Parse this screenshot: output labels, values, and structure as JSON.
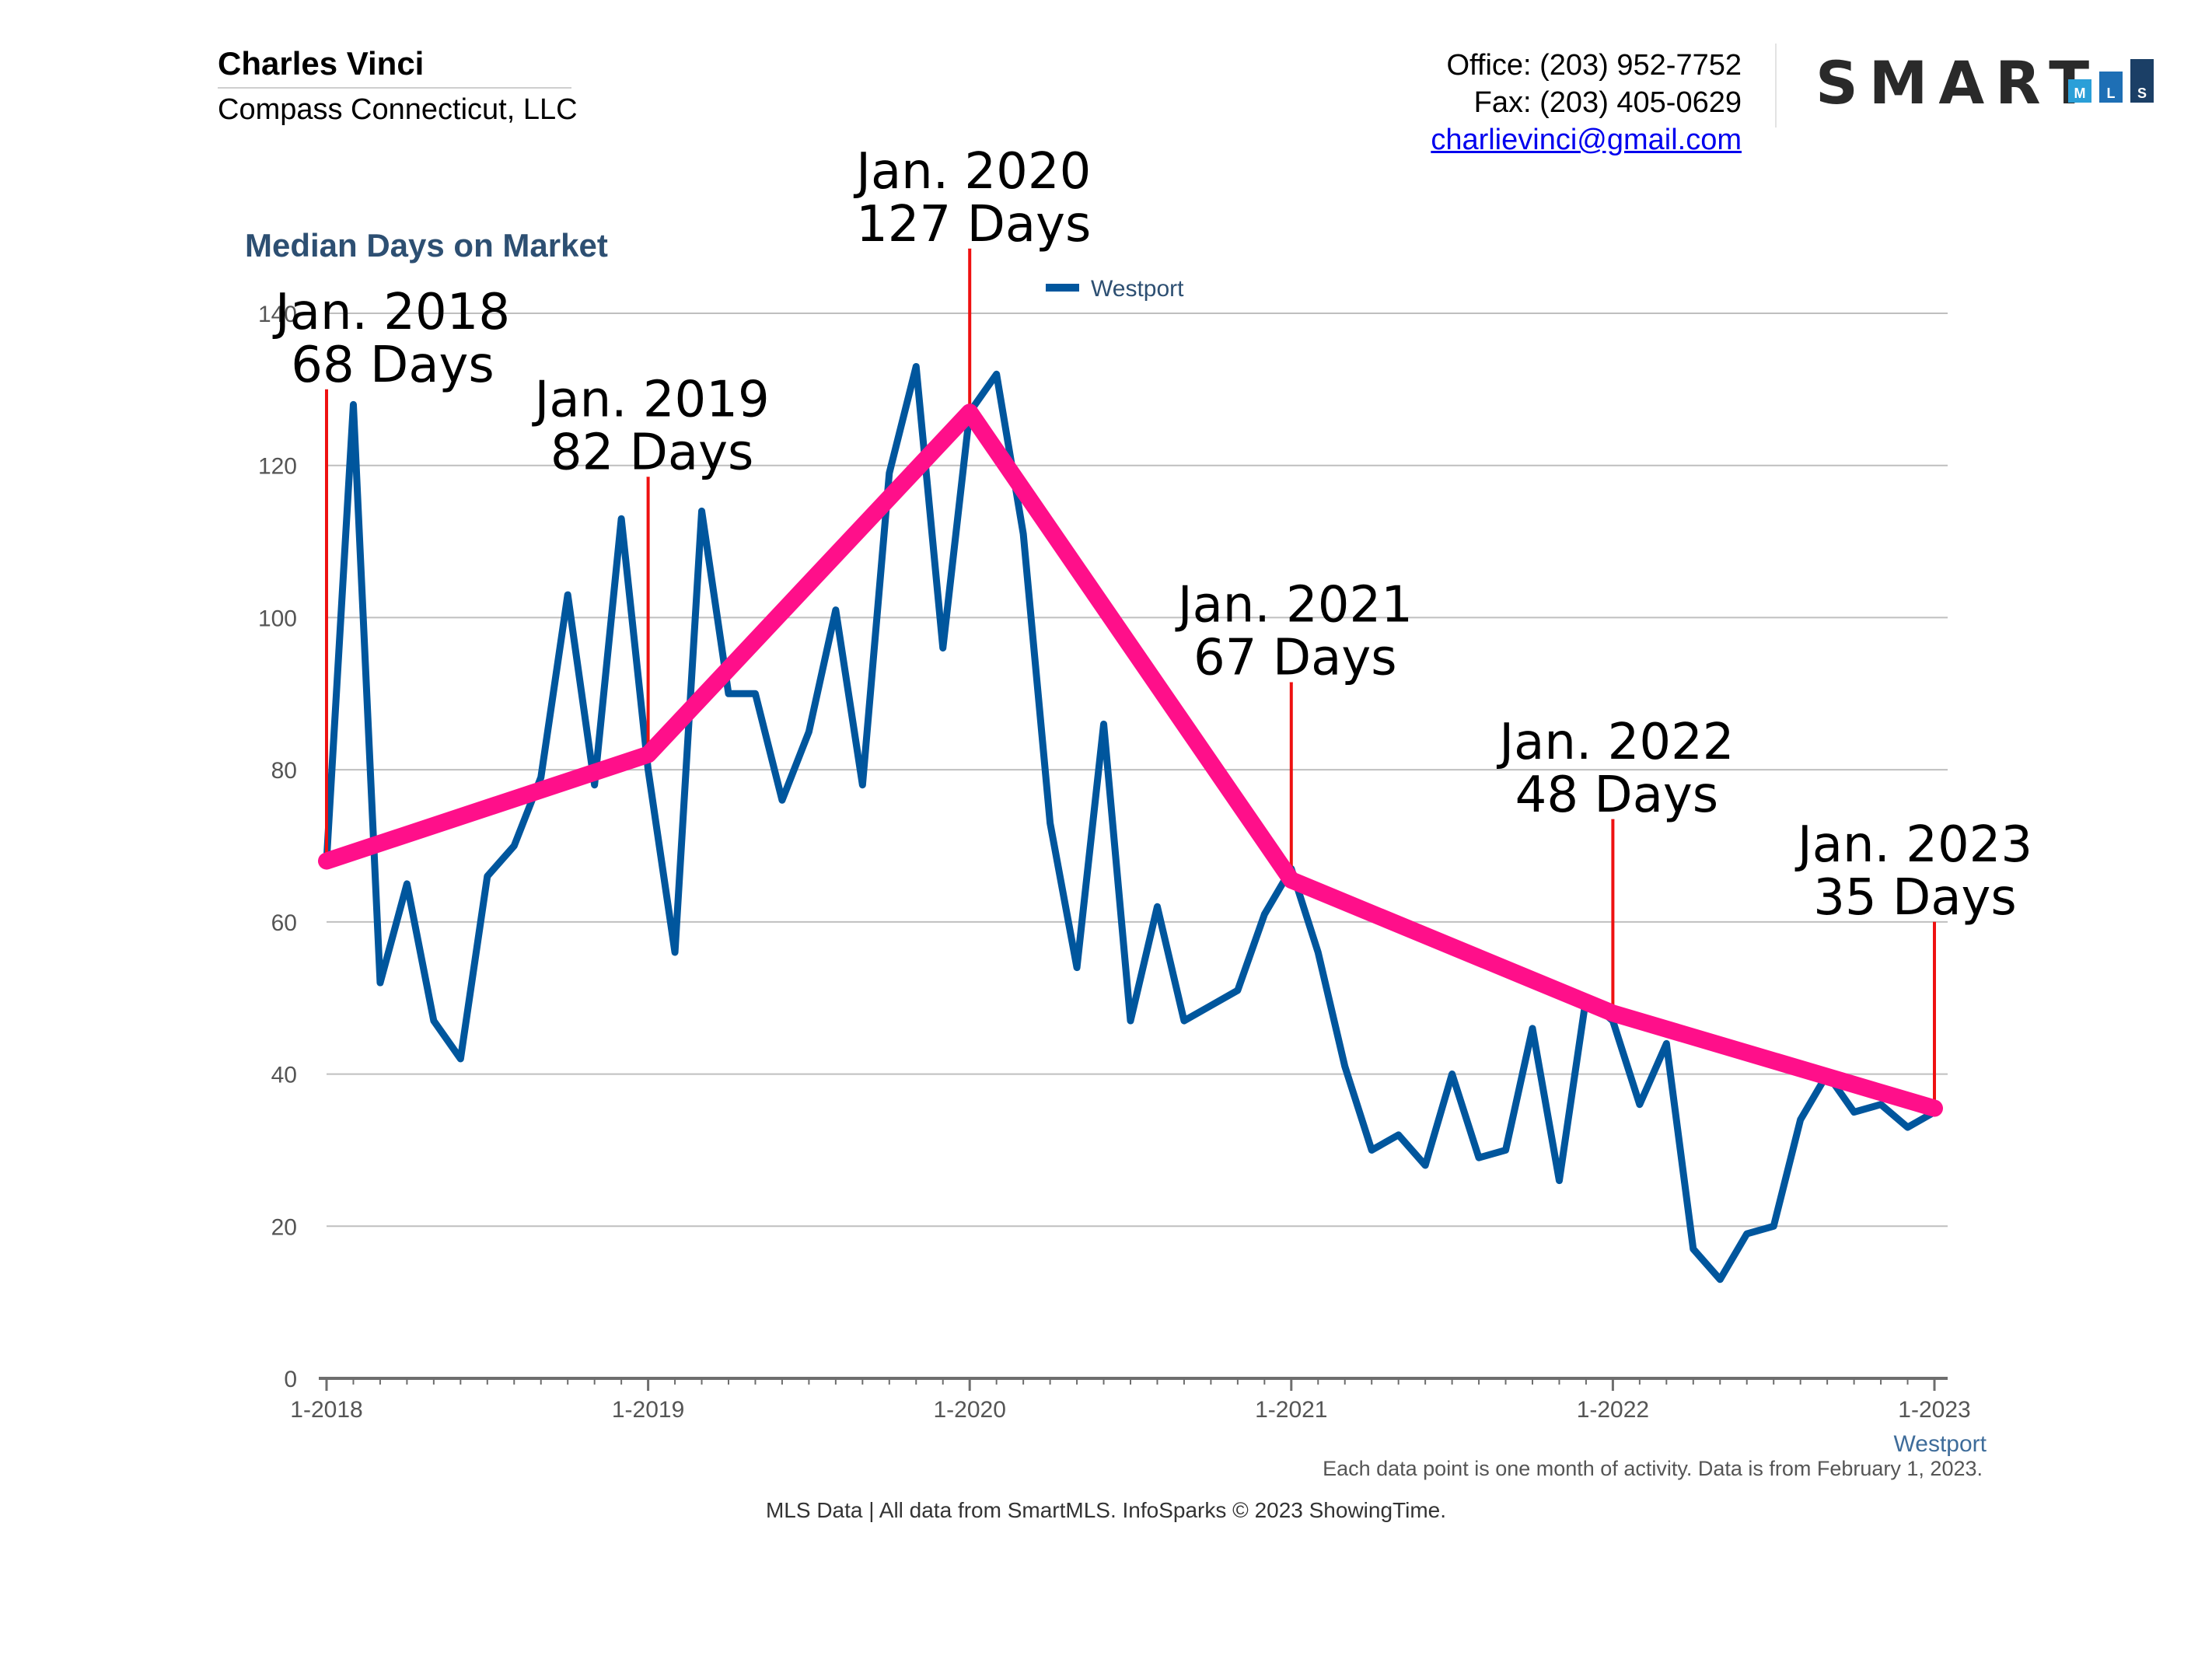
{
  "agent": {
    "name": "Charles Vinci",
    "company": "Compass Connecticut, LLC"
  },
  "contact": {
    "office": "Office: (203) 952-7752",
    "fax": "Fax: (203) 405-0629",
    "email": "charlievinci@gmail.com"
  },
  "logo": {
    "text": "SMART",
    "letters": [
      "M",
      "L",
      "S"
    ],
    "colors": [
      "#2a9fd8",
      "#1e6fb5",
      "#1b3f66"
    ]
  },
  "footnote": "Each data point is one month of activity. Data is from February 1, 2023.",
  "credits": "MLS Data | All data from SmartMLS. InfoSparks © 2023 ShowingTime.",
  "chart_data": {
    "type": "line",
    "title": "Median Days on Market",
    "xlabel": "Westport",
    "ylabel": "",
    "ylim": [
      0,
      140
    ],
    "yticks": [
      0,
      20,
      40,
      60,
      80,
      100,
      120,
      140
    ],
    "xlim": [
      0,
      60
    ],
    "xticks": [
      {
        "pos": 0,
        "label": "1-2018"
      },
      {
        "pos": 12,
        "label": "1-2019"
      },
      {
        "pos": 24,
        "label": "1-2020"
      },
      {
        "pos": 36,
        "label": "1-2021"
      },
      {
        "pos": 48,
        "label": "1-2022"
      },
      {
        "pos": 60,
        "label": "1-2023"
      }
    ],
    "grid": true,
    "legend": {
      "position": "top-center",
      "entries": [
        "Westport"
      ]
    },
    "series": [
      {
        "name": "Westport",
        "color": "#00569d",
        "values": [
          68,
          128,
          52,
          65,
          47,
          42,
          66,
          70,
          79,
          103,
          78,
          113,
          80,
          56,
          114,
          90,
          90,
          76,
          85,
          101,
          78,
          119,
          133,
          96,
          127,
          132,
          111,
          73,
          54,
          86,
          47,
          62,
          47,
          49,
          51,
          61,
          67,
          56,
          41,
          30,
          32,
          28,
          40,
          29,
          30,
          46,
          26,
          50,
          47,
          36,
          44,
          17,
          13,
          19,
          20,
          34,
          40,
          35,
          36,
          33,
          35
        ]
      }
    ],
    "trend": {
      "color": "#ff0f8a",
      "x": [
        0,
        12,
        24,
        36,
        48,
        60
      ],
      "values": [
        68,
        82,
        127,
        65.5,
        48,
        35.5
      ]
    },
    "annotations": [
      {
        "x": 0,
        "line1": "Jan. 2018",
        "line2": "68 Days",
        "top_value": 130
      },
      {
        "x": 12,
        "line1": "Jan. 2019",
        "line2": "82 Days",
        "top_value": 118.5
      },
      {
        "x": 24,
        "line1": "Jan. 2020",
        "line2": "127 Days",
        "top_value": 148.5
      },
      {
        "x": 36,
        "line1": "Jan. 2021",
        "line2": "67 Days",
        "top_value": 91.5
      },
      {
        "x": 48,
        "line1": "Jan. 2022",
        "line2": "48 Days",
        "top_value": 73.5
      },
      {
        "x": 60,
        "line1": "Jan. 2023",
        "line2": "35 Days",
        "top_value": 60
      }
    ]
  }
}
